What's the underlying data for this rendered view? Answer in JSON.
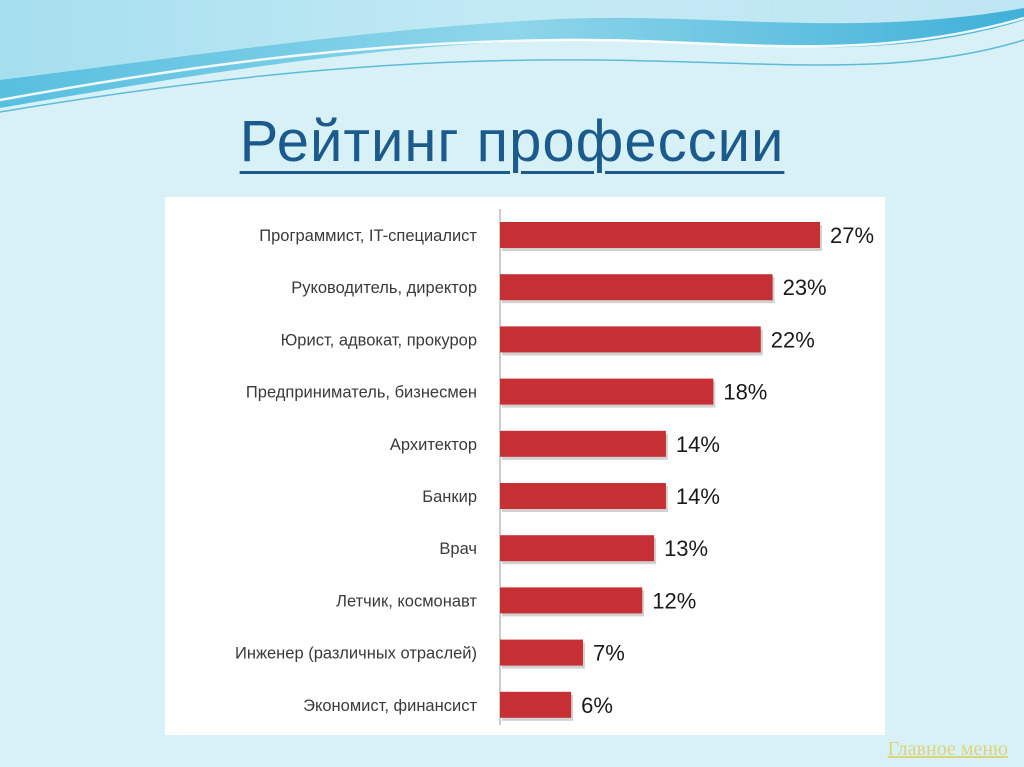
{
  "title": "Рейтинг профессии",
  "nav": {
    "main_menu_label": "Главное меню"
  },
  "colors": {
    "bar": "#c62f33",
    "title": "#1b5a8c",
    "background": "#d8f1f6",
    "link": "#ddd37a"
  },
  "chart_data": {
    "type": "bar",
    "orientation": "horizontal",
    "categories": [
      "Программист, IT-специалист",
      "Руководитель, директор",
      "Юрист, адвокат, прокурор",
      "Предприниматель, бизнесмен",
      "Архитектор",
      "Банкир",
      "Врач",
      "Летчик, космонавт",
      "Инженер (различных отраслей)",
      "Экономист, финансист"
    ],
    "values": [
      27,
      23,
      22,
      18,
      14,
      14,
      13,
      12,
      7,
      6
    ],
    "data_labels": [
      "27%",
      "23%",
      "22%",
      "18%",
      "14%",
      "14%",
      "13%",
      "12%",
      "7%",
      "6%"
    ],
    "unit": "%",
    "xlim": [
      0,
      27
    ],
    "grid": false,
    "legend": "none"
  }
}
